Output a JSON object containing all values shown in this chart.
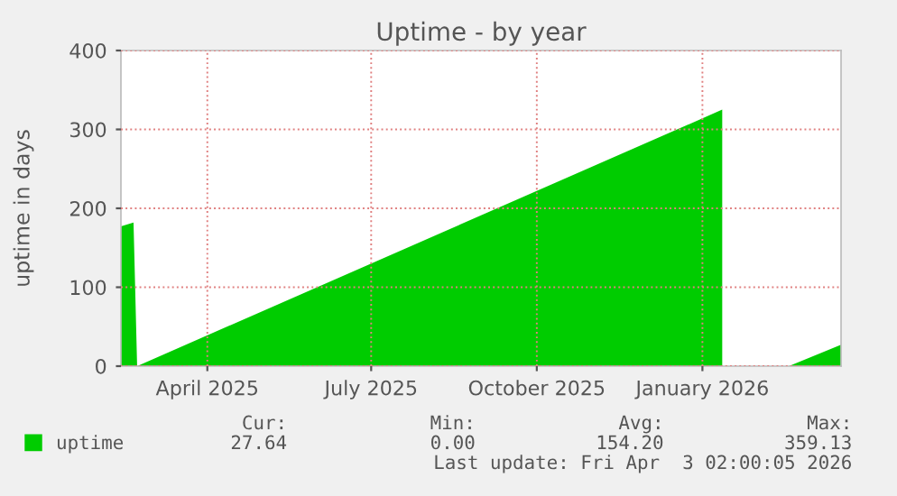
{
  "chart_data": {
    "type": "area",
    "title": "Uptime - by year",
    "ylabel": "uptime in days",
    "x": [
      "2025-02-27",
      "2025-03-06",
      "2025-03-08",
      "2026-01-27",
      "2026-01-28",
      "2026-03-05",
      "2026-04-03"
    ],
    "series": [
      {
        "name": "uptime",
        "color": "#00cc00",
        "values": [
          177,
          182,
          0,
          325,
          null,
          0,
          27
        ]
      }
    ],
    "xlim": [
      "2025-02-27",
      "2026-04-03"
    ],
    "xticks": [
      {
        "value": "2025-04-16",
        "label": "April 2025"
      },
      {
        "value": "2025-07-16",
        "label": "July 2025"
      },
      {
        "value": "2025-10-16",
        "label": "October 2025"
      },
      {
        "value": "2026-01-16",
        "label": "January 2026"
      }
    ],
    "ylim": [
      0,
      400
    ],
    "yticks": [
      0,
      100,
      200,
      300,
      400
    ],
    "grid": true,
    "legend": "bottom",
    "annotations": [
      "Cur:",
      "27.64",
      "Min:",
      "0.00",
      "Avg:",
      "154.20",
      "Max:",
      "359.13",
      "Last update: Fri Apr  3 02:00:05 2026"
    ]
  }
}
